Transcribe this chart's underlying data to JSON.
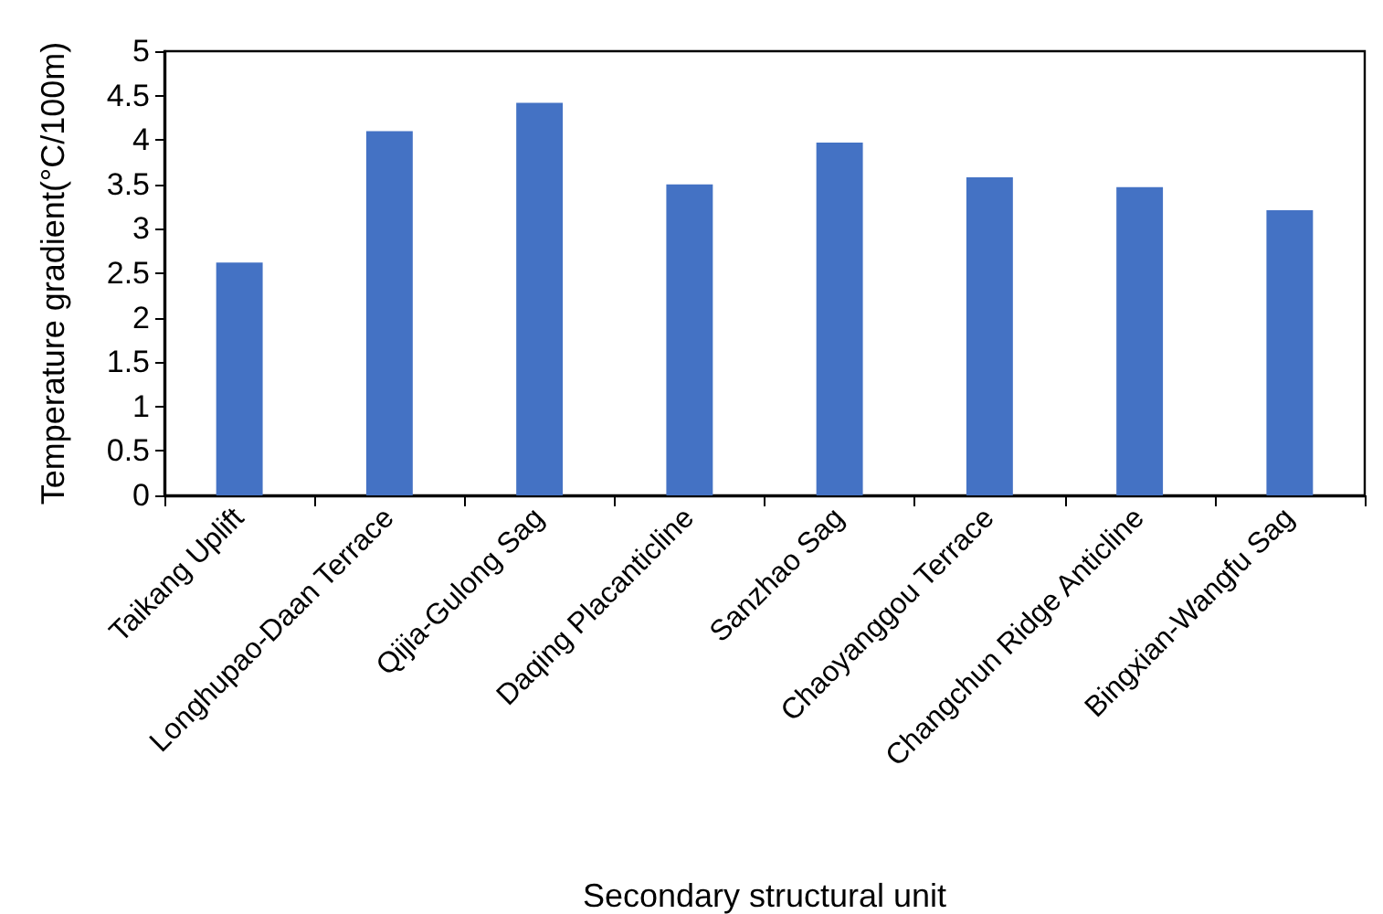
{
  "chart_data": {
    "type": "bar",
    "xlabel": "Secondary structural unit",
    "ylabel": "Temperature gradient(°C/100m)",
    "categories": [
      "Taikang Uplift",
      "Longhupao-Daan Terrace",
      "Qijia-Gulong Sag",
      "Daqing Placanticline",
      "Sanzhao Sag",
      "Chaoyanggou Terrace",
      "Changchun Ridge Anticline",
      "Bingxian-Wangfu Sag"
    ],
    "values": [
      2.62,
      4.1,
      4.42,
      3.5,
      3.97,
      3.58,
      3.47,
      3.21
    ],
    "color": "#4472c4",
    "ylim": [
      0,
      5
    ],
    "yticks": [
      0,
      0.5,
      1,
      1.5,
      2,
      2.5,
      3,
      3.5,
      4,
      4.5,
      5
    ],
    "grid": false
  }
}
